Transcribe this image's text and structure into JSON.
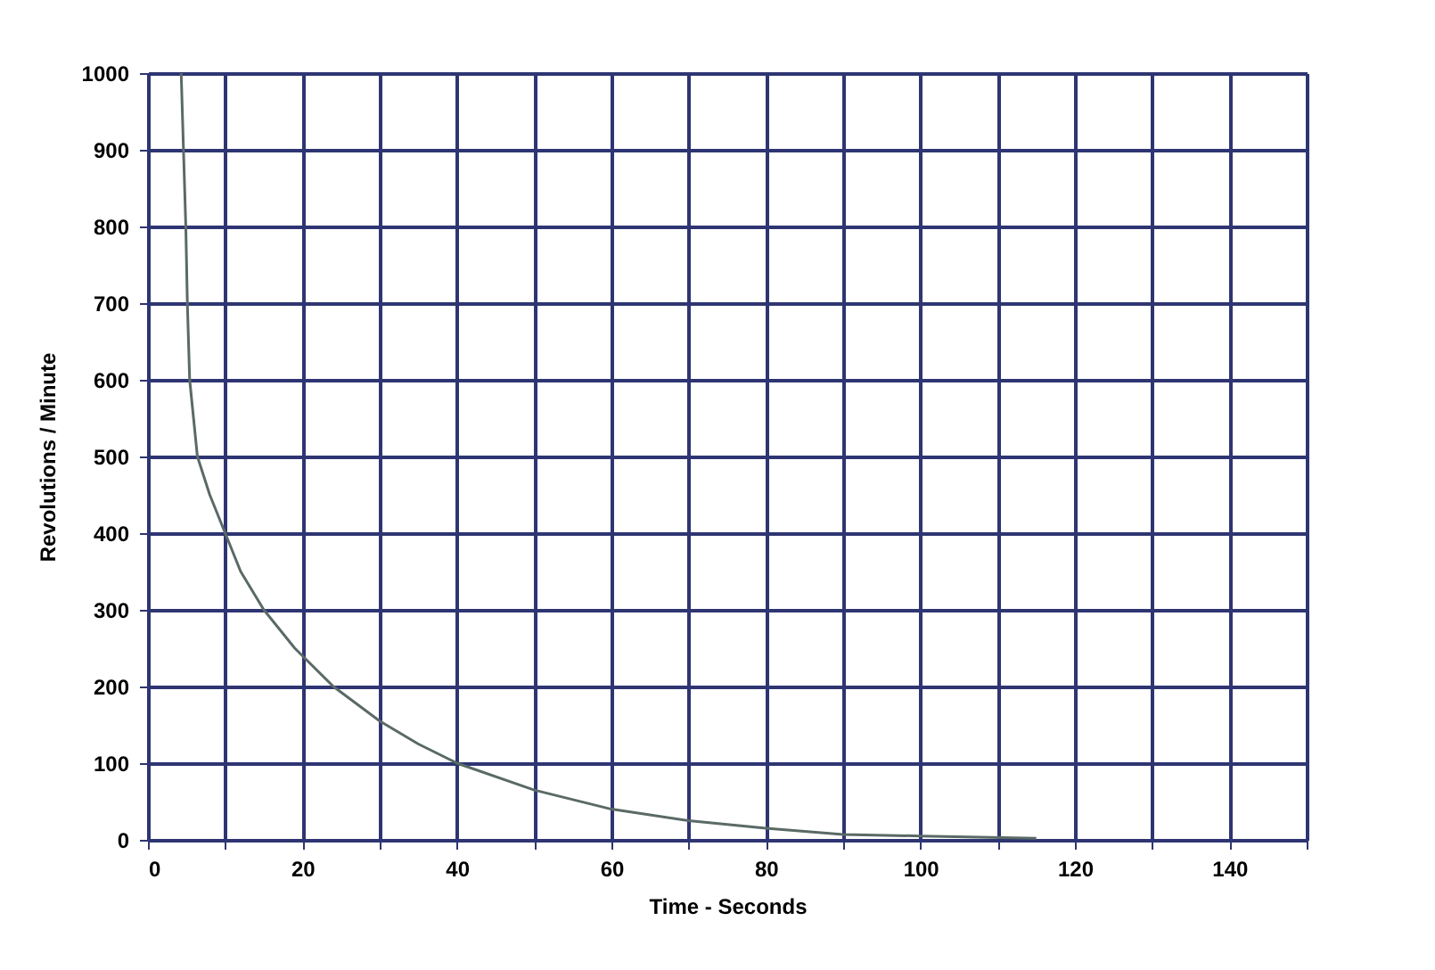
{
  "chart_data": {
    "type": "line",
    "xlabel": "Time - Seconds",
    "ylabel": "Revolutions / Minute",
    "xlim": [
      0,
      150
    ],
    "ylim": [
      0,
      1000
    ],
    "xticks": [
      0,
      {
        "value": 10,
        "label": null
      },
      20,
      {
        "value": 30,
        "label": null
      },
      40,
      {
        "value": 50,
        "label": null
      },
      60,
      {
        "value": 70,
        "label": null
      },
      80,
      {
        "value": 90,
        "label": null
      },
      100,
      {
        "value": 110,
        "label": null
      },
      120,
      {
        "value": 130,
        "label": null
      },
      140,
      {
        "value": 150,
        "label": null
      }
    ],
    "yticks": [
      0,
      100,
      200,
      300,
      400,
      500,
      600,
      700,
      800,
      900,
      1000
    ],
    "grid": true,
    "marker": "none",
    "line_style": "solid",
    "x": [
      4.3,
      4.9,
      5.1,
      5.4,
      6.4,
      8,
      10,
      12,
      15,
      19,
      24,
      30,
      35,
      40,
      50,
      60,
      70,
      80,
      90,
      100,
      115
    ],
    "series": [
      {
        "color": "#5a6a66",
        "values": [
          1000,
          800,
          700,
          600,
          500,
          450,
          400,
          350,
          300,
          250,
          200,
          155,
          125,
          100,
          65,
          40,
          25,
          15,
          7,
          5,
          2
        ]
      }
    ]
  }
}
